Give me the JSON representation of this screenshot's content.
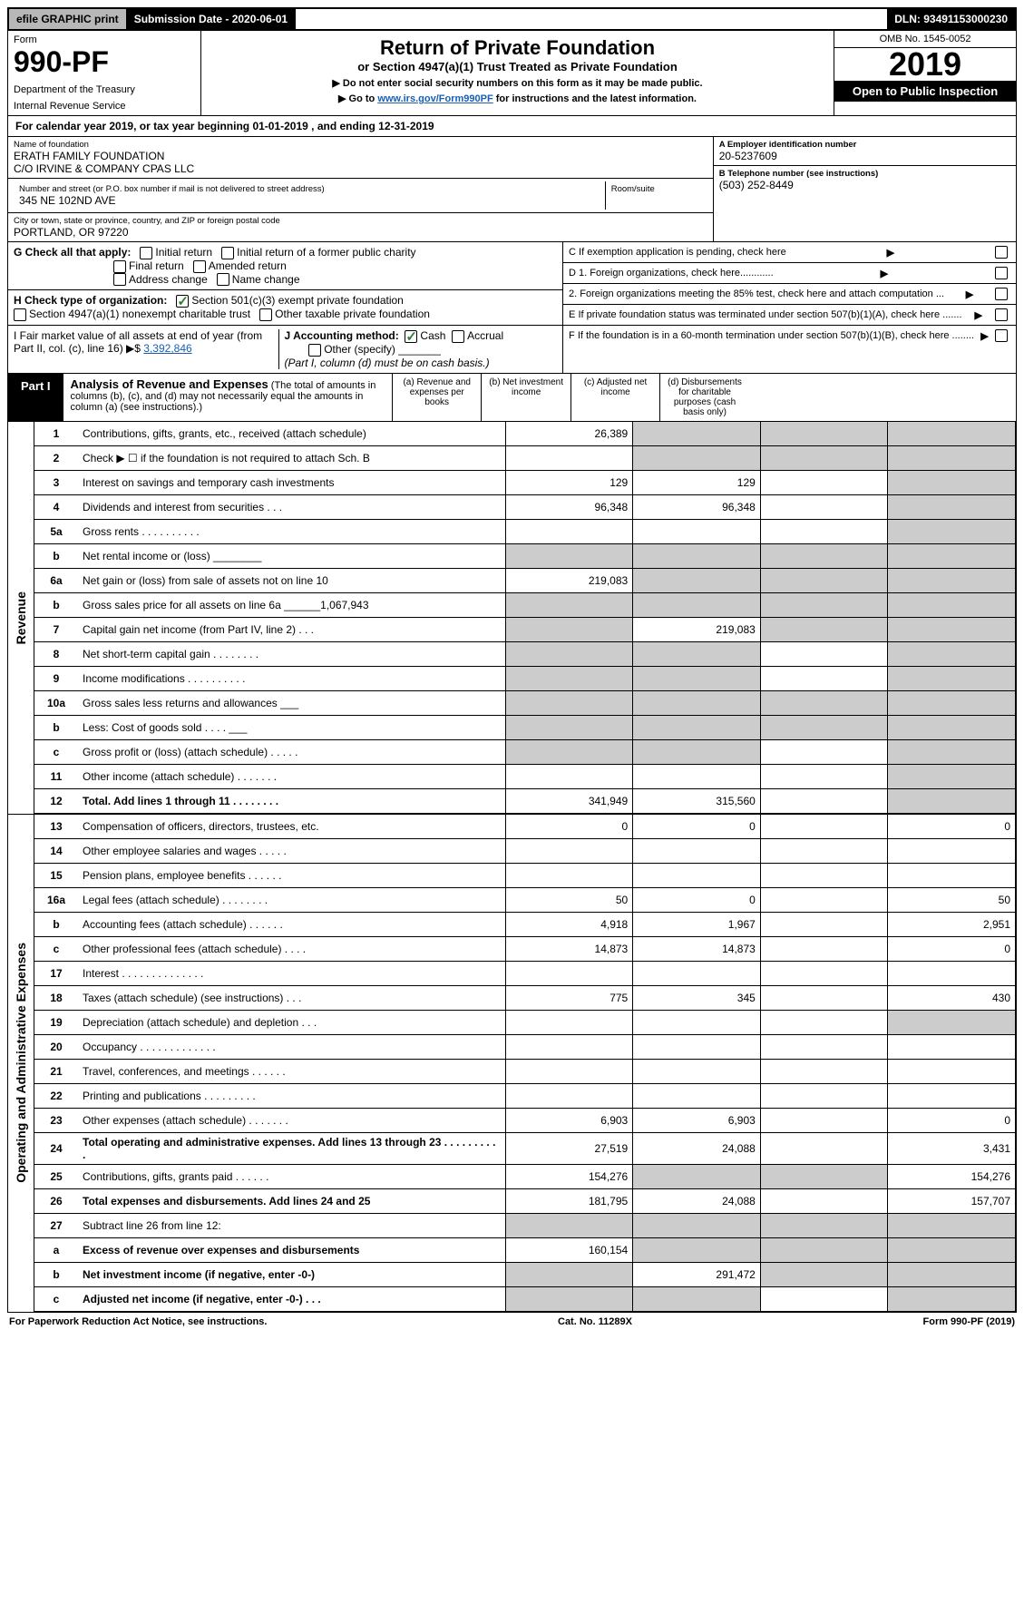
{
  "topbar": {
    "efile": "efile GRAPHIC print",
    "subdate_label": "Submission Date - 2020-06-01",
    "dln": "DLN: 93491153000230"
  },
  "header": {
    "form_label": "Form",
    "form_num": "990-PF",
    "dept1": "Department of the Treasury",
    "dept2": "Internal Revenue Service",
    "title": "Return of Private Foundation",
    "subtitle": "or Section 4947(a)(1) Trust Treated as Private Foundation",
    "note1": "▶ Do not enter social security numbers on this form as it may be made public.",
    "note2": "▶ Go to www.irs.gov/Form990PF for instructions and the latest information.",
    "omb": "OMB No. 1545-0052",
    "year": "2019",
    "open_pub": "Open to Public Inspection"
  },
  "calyear": "For calendar year 2019, or tax year beginning 01-01-2019          , and ending 12-31-2019",
  "info": {
    "name_label": "Name of foundation",
    "name1": "ERATH FAMILY FOUNDATION",
    "name2": "C/O IRVINE & COMPANY CPAS LLC",
    "addr_label": "Number and street (or P.O. box number if mail is not delivered to street address)",
    "room_label": "Room/suite",
    "addr": "345 NE 102ND AVE",
    "city_label": "City or town, state or province, country, and ZIP or foreign postal code",
    "city": "PORTLAND, OR  97220",
    "ein_label": "A Employer identification number",
    "ein": "20-5237609",
    "tel_label": "B Telephone number (see instructions)",
    "tel": "(503) 252-8449",
    "c_label": "C If exemption application is pending, check here",
    "d1_label": "D 1. Foreign organizations, check here............",
    "d2_label": "2. Foreign organizations meeting the 85% test, check here and attach computation ...",
    "e_label": "E  If private foundation status was terminated under section 507(b)(1)(A), check here .......",
    "f_label": "F  If the foundation is in a 60-month termination under section 507(b)(1)(B), check here ........"
  },
  "checks": {
    "g_label": "G Check all that apply:",
    "g_opts": [
      "Initial return",
      "Initial return of a former public charity",
      "Final return",
      "Amended return",
      "Address change",
      "Name change"
    ],
    "h_label": "H Check type of organization:",
    "h1": "Section 501(c)(3) exempt private foundation",
    "h2": "Section 4947(a)(1) nonexempt charitable trust",
    "h3": "Other taxable private foundation",
    "i_label": "I Fair market value of all assets at end of year (from Part II, col. (c), line 16) ▶$",
    "i_val": "3,392,846",
    "j_label": "J Accounting method:",
    "j_cash": "Cash",
    "j_accrual": "Accrual",
    "j_other": "Other (specify)",
    "j_note": "(Part I, column (d) must be on cash basis.)"
  },
  "part1": {
    "tab": "Part I",
    "title": "Analysis of Revenue and Expenses",
    "note": "(The total of amounts in columns (b), (c), and (d) may not necessarily equal the amounts in column (a) (see instructions).)",
    "col_a": "(a)   Revenue and expenses per books",
    "col_b": "(b)  Net investment income",
    "col_c": "(c)  Adjusted net income",
    "col_d": "(d)  Disbursements for charitable purposes (cash basis only)"
  },
  "sections": {
    "revenue": "Revenue",
    "expenses": "Operating and Administrative Expenses"
  },
  "rows": [
    {
      "n": "1",
      "desc": "Contributions, gifts, grants, etc., received (attach schedule)",
      "a": "26,389",
      "b": "",
      "c": "",
      "d": "",
      "sb": true,
      "sc": true,
      "sd": true
    },
    {
      "n": "2",
      "desc": "Check ▶ ☐ if the foundation is not required to attach Sch. B",
      "a": "",
      "b": "",
      "c": "",
      "d": "",
      "sb": true,
      "sc": true,
      "sd": true
    },
    {
      "n": "3",
      "desc": "Interest on savings and temporary cash investments",
      "a": "129",
      "b": "129",
      "c": "",
      "d": "",
      "sd": true
    },
    {
      "n": "4",
      "desc": "Dividends and interest from securities   .   .   .",
      "a": "96,348",
      "b": "96,348",
      "c": "",
      "d": "",
      "sd": true
    },
    {
      "n": "5a",
      "desc": "Gross rents      .   .   .   .   .   .   .   .   .   .",
      "a": "",
      "b": "",
      "c": "",
      "d": "",
      "sd": true
    },
    {
      "n": "b",
      "desc": "Net rental income or (loss)  ________",
      "a": "",
      "b": "",
      "c": "",
      "d": "",
      "sa": true,
      "sb": true,
      "sc": true,
      "sd": true
    },
    {
      "n": "6a",
      "desc": "Net gain or (loss) from sale of assets not on line 10",
      "a": "219,083",
      "b": "",
      "c": "",
      "d": "",
      "sb": true,
      "sc": true,
      "sd": true
    },
    {
      "n": "b",
      "desc": "Gross sales price for all assets on line 6a ______1,067,943",
      "a": "",
      "b": "",
      "c": "",
      "d": "",
      "sa": true,
      "sb": true,
      "sc": true,
      "sd": true
    },
    {
      "n": "7",
      "desc": "Capital gain net income (from Part IV, line 2)   .   .   .",
      "a": "",
      "b": "219,083",
      "c": "",
      "d": "",
      "sa": true,
      "sc": true,
      "sd": true
    },
    {
      "n": "8",
      "desc": "Net short-term capital gain   .   .   .   .   .   .   .   .",
      "a": "",
      "b": "",
      "c": "",
      "d": "",
      "sa": true,
      "sb": true,
      "sd": true
    },
    {
      "n": "9",
      "desc": "Income modifications  .   .   .   .   .   .   .   .   .   .",
      "a": "",
      "b": "",
      "c": "",
      "d": "",
      "sa": true,
      "sb": true,
      "sd": true
    },
    {
      "n": "10a",
      "desc": "Gross sales less returns and allowances  ___",
      "a": "",
      "b": "",
      "c": "",
      "d": "",
      "sa": true,
      "sb": true,
      "sc": true,
      "sd": true
    },
    {
      "n": "b",
      "desc": "Less: Cost of goods sold    .   .   .   .   ___",
      "a": "",
      "b": "",
      "c": "",
      "d": "",
      "sa": true,
      "sb": true,
      "sc": true,
      "sd": true
    },
    {
      "n": "c",
      "desc": "Gross profit or (loss) (attach schedule)   .   .   .   .   .",
      "a": "",
      "b": "",
      "c": "",
      "d": "",
      "sa": true,
      "sb": true,
      "sd": true
    },
    {
      "n": "11",
      "desc": "Other income (attach schedule)   .   .   .   .   .   .   .",
      "a": "",
      "b": "",
      "c": "",
      "d": "",
      "sd": true
    },
    {
      "n": "12",
      "desc": "Total. Add lines 1 through 11   .   .   .   .   .   .   .   .",
      "a": "341,949",
      "b": "315,560",
      "c": "",
      "d": "",
      "bold": true,
      "sd": true
    }
  ],
  "exp_rows": [
    {
      "n": "13",
      "desc": "Compensation of officers, directors, trustees, etc.",
      "a": "0",
      "b": "0",
      "c": "",
      "d": "0"
    },
    {
      "n": "14",
      "desc": "Other employee salaries and wages   .   .   .   .   .",
      "a": "",
      "b": "",
      "c": "",
      "d": ""
    },
    {
      "n": "15",
      "desc": "Pension plans, employee benefits   .   .   .   .   .   .",
      "a": "",
      "b": "",
      "c": "",
      "d": ""
    },
    {
      "n": "16a",
      "desc": "Legal fees (attach schedule)  .   .   .   .   .   .   .   .",
      "a": "50",
      "b": "0",
      "c": "",
      "d": "50"
    },
    {
      "n": "b",
      "desc": "Accounting fees (attach schedule)  .   .   .   .   .   .",
      "a": "4,918",
      "b": "1,967",
      "c": "",
      "d": "2,951"
    },
    {
      "n": "c",
      "desc": "Other professional fees (attach schedule)   .   .   .   .",
      "a": "14,873",
      "b": "14,873",
      "c": "",
      "d": "0"
    },
    {
      "n": "17",
      "desc": "Interest   .   .   .   .   .   .   .   .   .   .   .   .   .   .",
      "a": "",
      "b": "",
      "c": "",
      "d": ""
    },
    {
      "n": "18",
      "desc": "Taxes (attach schedule) (see instructions)   .   .   .",
      "a": "775",
      "b": "345",
      "c": "",
      "d": "430"
    },
    {
      "n": "19",
      "desc": "Depreciation (attach schedule) and depletion   .   .   .",
      "a": "",
      "b": "",
      "c": "",
      "d": "",
      "sd": true
    },
    {
      "n": "20",
      "desc": "Occupancy  .   .   .   .   .   .   .   .   .   .   .   .   .",
      "a": "",
      "b": "",
      "c": "",
      "d": ""
    },
    {
      "n": "21",
      "desc": "Travel, conferences, and meetings   .   .   .   .   .   .",
      "a": "",
      "b": "",
      "c": "",
      "d": ""
    },
    {
      "n": "22",
      "desc": "Printing and publications  .   .   .   .   .   .   .   .   .",
      "a": "",
      "b": "",
      "c": "",
      "d": ""
    },
    {
      "n": "23",
      "desc": "Other expenses (attach schedule)  .   .   .   .   .   .   .",
      "a": "6,903",
      "b": "6,903",
      "c": "",
      "d": "0"
    },
    {
      "n": "24",
      "desc": "Total operating and administrative expenses. Add lines 13 through 23   .   .   .   .   .   .   .   .   .   .",
      "a": "27,519",
      "b": "24,088",
      "c": "",
      "d": "3,431",
      "bold": true
    },
    {
      "n": "25",
      "desc": "Contributions, gifts, grants paid   .   .   .   .   .   .",
      "a": "154,276",
      "b": "",
      "c": "",
      "d": "154,276",
      "sb": true,
      "sc": true
    },
    {
      "n": "26",
      "desc": "Total expenses and disbursements. Add lines 24 and 25",
      "a": "181,795",
      "b": "24,088",
      "c": "",
      "d": "157,707",
      "bold": true
    },
    {
      "n": "27",
      "desc": "Subtract line 26 from line 12:",
      "a": "",
      "b": "",
      "c": "",
      "d": "",
      "sa": true,
      "sb": true,
      "sc": true,
      "sd": true
    },
    {
      "n": "a",
      "desc": "Excess of revenue over expenses and disbursements",
      "a": "160,154",
      "b": "",
      "c": "",
      "d": "",
      "bold": true,
      "sb": true,
      "sc": true,
      "sd": true
    },
    {
      "n": "b",
      "desc": "Net investment income (if negative, enter -0-)",
      "a": "",
      "b": "291,472",
      "c": "",
      "d": "",
      "bold": true,
      "sa": true,
      "sc": true,
      "sd": true
    },
    {
      "n": "c",
      "desc": "Adjusted net income (if negative, enter -0-)   .   .   .",
      "a": "",
      "b": "",
      "c": "",
      "d": "",
      "bold": true,
      "sa": true,
      "sb": true,
      "sd": true
    }
  ],
  "footer": {
    "left": "For Paperwork Reduction Act Notice, see instructions.",
    "center": "Cat. No. 11289X",
    "right": "Form 990-PF (2019)"
  }
}
